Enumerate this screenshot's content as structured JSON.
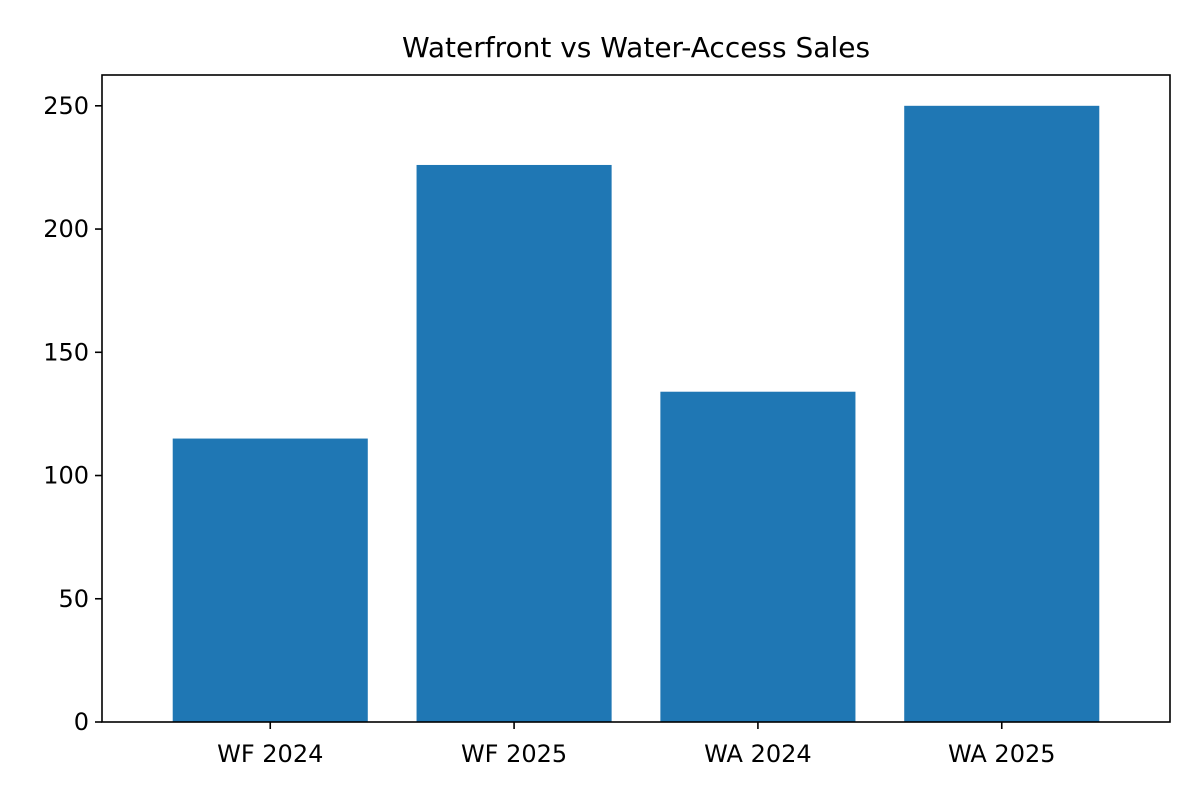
{
  "chart_data": {
    "type": "bar",
    "title": "Waterfront vs Water-Access Sales",
    "xlabel": "",
    "ylabel": "",
    "categories": [
      "WF 2024",
      "WF 2025",
      "WA 2024",
      "WA 2025"
    ],
    "values": [
      115,
      226,
      134,
      250
    ],
    "ylim": [
      0,
      262.5
    ],
    "yticks": [
      0,
      50,
      100,
      150,
      200,
      250
    ],
    "grid": false,
    "bar_color": "#1f77b4"
  }
}
